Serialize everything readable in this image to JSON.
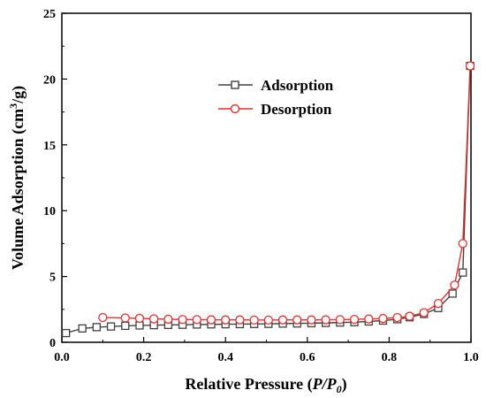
{
  "chart_data": {
    "type": "line",
    "xlabel": "Relative Pressure (P/P0)",
    "xlabel_parts": {
      "prefix": "Relative Pressure (",
      "p": "P",
      "slash": "/P",
      "sub": "0",
      "suffix": ")"
    },
    "ylabel": "Volume Adsorption (cm3/g)",
    "ylabel_parts": {
      "prefix": "Volume Adsorption (cm",
      "sup": "3",
      "suffix": "/g)"
    },
    "xlim": [
      0.0,
      1.0
    ],
    "ylim": [
      0,
      25
    ],
    "xticks": [
      "0.0",
      "0.2",
      "0.4",
      "0.6",
      "0.8",
      "1.0"
    ],
    "yticks": [
      "0",
      "5",
      "10",
      "15",
      "20",
      "25"
    ],
    "grid": false,
    "legend_position": "upper-center",
    "series": [
      {
        "name": "Adsorption",
        "color": "#404040",
        "marker": "square",
        "x": [
          0.01,
          0.05,
          0.085,
          0.12,
          0.155,
          0.19,
          0.225,
          0.26,
          0.295,
          0.33,
          0.365,
          0.4,
          0.435,
          0.47,
          0.505,
          0.54,
          0.575,
          0.61,
          0.645,
          0.68,
          0.715,
          0.75,
          0.785,
          0.82,
          0.85,
          0.885,
          0.92,
          0.955,
          0.98,
          0.998
        ],
        "y": [
          0.7,
          1.05,
          1.15,
          1.2,
          1.25,
          1.28,
          1.3,
          1.32,
          1.33,
          1.35,
          1.36,
          1.37,
          1.38,
          1.39,
          1.4,
          1.42,
          1.43,
          1.45,
          1.47,
          1.5,
          1.53,
          1.58,
          1.65,
          1.75,
          1.9,
          2.15,
          2.6,
          3.7,
          5.3,
          21.0
        ]
      },
      {
        "name": "Desorption",
        "color": "#e03030",
        "marker": "circle",
        "x": [
          0.1,
          0.155,
          0.19,
          0.225,
          0.26,
          0.295,
          0.33,
          0.365,
          0.4,
          0.435,
          0.47,
          0.505,
          0.54,
          0.575,
          0.61,
          0.645,
          0.68,
          0.715,
          0.75,
          0.785,
          0.82,
          0.85,
          0.885,
          0.92,
          0.96,
          0.98,
          0.998
        ],
        "y": [
          1.88,
          1.85,
          1.82,
          1.78,
          1.75,
          1.73,
          1.72,
          1.71,
          1.7,
          1.7,
          1.69,
          1.69,
          1.7,
          1.7,
          1.7,
          1.71,
          1.72,
          1.74,
          1.77,
          1.81,
          1.88,
          1.98,
          2.25,
          2.95,
          4.35,
          7.5,
          21.0
        ]
      }
    ]
  }
}
